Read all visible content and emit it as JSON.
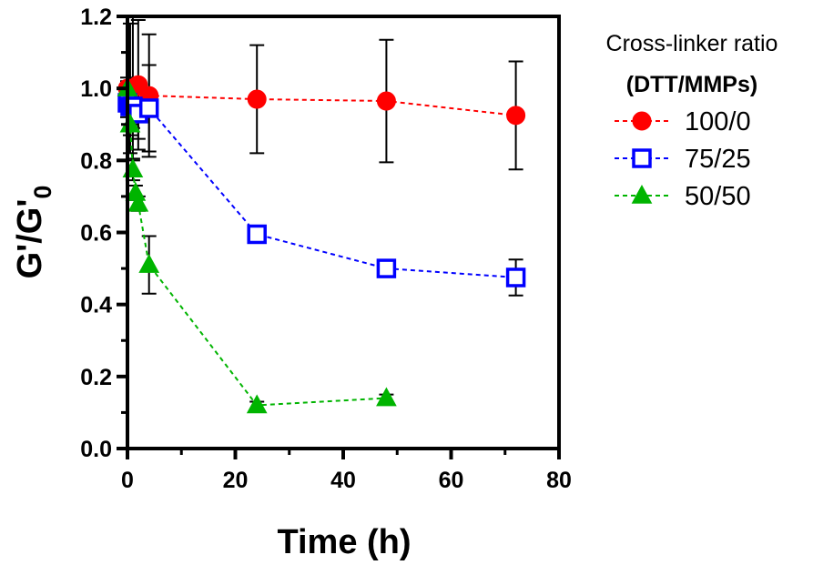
{
  "chart_data": {
    "type": "scatter",
    "title": "",
    "xlabel": "Time (h)",
    "ylabel_main": "G'/G'",
    "ylabel_sub": "0",
    "xlim": [
      0,
      80
    ],
    "ylim": [
      0,
      1.2
    ],
    "x_ticks": [
      0,
      20,
      40,
      60,
      80
    ],
    "x_tick_labels": [
      "0",
      "20",
      "40",
      "60",
      "80"
    ],
    "y_ticks": [
      0,
      0.2,
      0.4,
      0.6,
      0.8,
      1.0,
      1.2
    ],
    "y_tick_labels": [
      "0.0",
      "0.2",
      "0.4",
      "0.6",
      "0.8",
      "1.0",
      "1.2"
    ],
    "x_minor_ticks": [
      10,
      30,
      50,
      70
    ],
    "y_minor_ticks": [
      0.1,
      0.3,
      0.5,
      0.7,
      0.9,
      1.1
    ],
    "grid": false,
    "legend_position": "right",
    "legend_title": "Cross-linker ratio",
    "legend_subtitle": "(DTT/MMPs)",
    "series": [
      {
        "name": "100/0",
        "color": "#ff0000",
        "marker": "circle",
        "filled": true,
        "x": [
          0,
          0.5,
          1,
          2,
          4,
          24,
          48,
          72
        ],
        "y": [
          1.0,
          1.0,
          1.0,
          1.01,
          0.98,
          0.97,
          0.965,
          0.925
        ],
        "err": [
          0.03,
          0.18,
          0.2,
          0.18,
          0.17,
          0.15,
          0.17,
          0.15
        ]
      },
      {
        "name": "75/25",
        "color": "#0000ff",
        "marker": "square",
        "filled": false,
        "x": [
          0,
          0.5,
          1,
          2,
          4,
          24,
          48,
          72
        ],
        "y": [
          0.96,
          0.95,
          0.95,
          0.93,
          0.945,
          0.595,
          0.5,
          0.475
        ],
        "err": [
          0.04,
          0.05,
          0.06,
          0.07,
          0.12,
          0.015,
          0.015,
          0.05
        ]
      },
      {
        "name": "50/50",
        "color": "#00b400",
        "marker": "triangle",
        "filled": true,
        "x": [
          0,
          0.5,
          1,
          1.5,
          2,
          4,
          24,
          48
        ],
        "y": [
          1.0,
          0.9,
          0.775,
          0.71,
          0.68,
          0.51,
          0.12,
          0.14
        ],
        "err": [
          0.02,
          0.03,
          0.03,
          0.02,
          0.02,
          0.08,
          0.01,
          0.01
        ]
      }
    ]
  }
}
